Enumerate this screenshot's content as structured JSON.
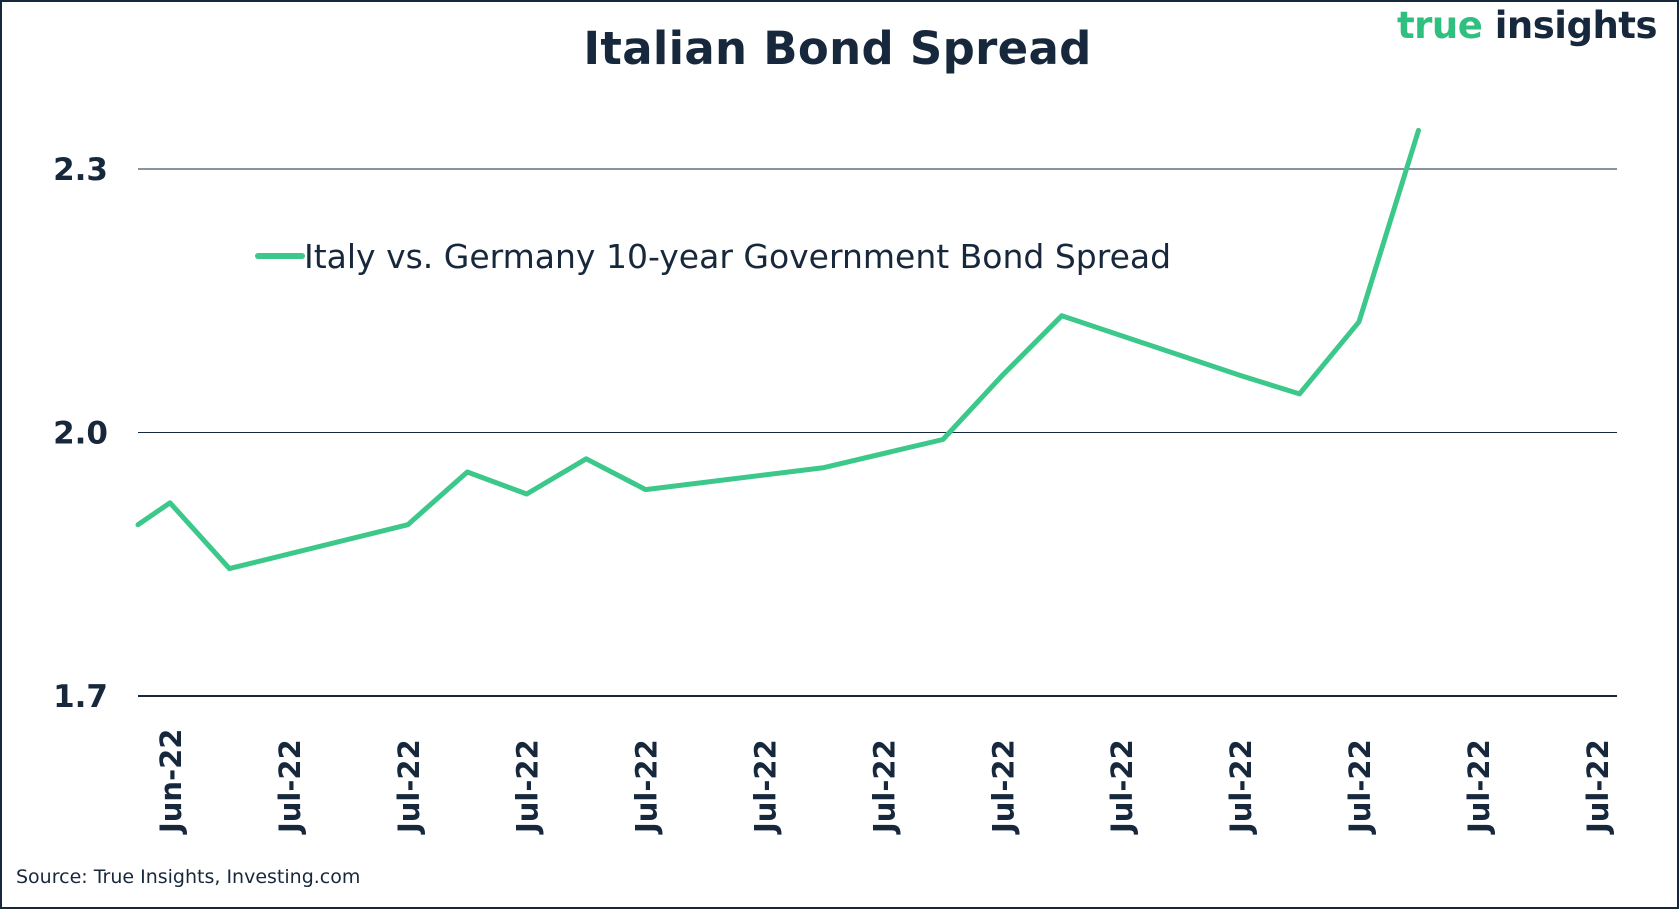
{
  "header": {
    "title": "Italian Bond Spread",
    "logo_part1": "true",
    "logo_part2": "insights"
  },
  "footer": {
    "source": "Source: True Insights, Investing.com"
  },
  "colors": {
    "series": "#3cc88a",
    "text": "#17283d",
    "grid": "#17283d",
    "logo_accent": "#2fbf7e"
  },
  "chart_data": {
    "type": "line",
    "title": "Italian Bond Spread",
    "xlabel": "",
    "ylabel": "",
    "ylim": [
      1.7,
      2.3
    ],
    "yticks": [
      "1.7",
      "2.0",
      "2.3"
    ],
    "xtick_labels": [
      "Jun-22",
      "Jul-22",
      "Jul-22",
      "Jul-22",
      "Jul-22",
      "Jul-22",
      "Jul-22",
      "Jul-22",
      "Jul-22",
      "Jul-22",
      "Jul-22",
      "Jul-22",
      "Jul-22"
    ],
    "grid": "horizontal",
    "legend": "top-left",
    "series": [
      {
        "name": "Italy vs. Germany 10-year Government Bond Spread",
        "values": [
          1.895,
          1.92,
          1.845,
          1.895,
          1.955,
          1.93,
          1.97,
          1.935,
          1.96,
          1.992,
          2.065,
          2.133,
          2.065,
          2.044,
          2.126,
          2.344
        ]
      }
    ],
    "x_positions": [
      0,
      0.5,
      1,
      2.5,
      3,
      3.5,
      4,
      4.5,
      6,
      7,
      7.5,
      8,
      9.5,
      10,
      10.5,
      11
    ]
  }
}
